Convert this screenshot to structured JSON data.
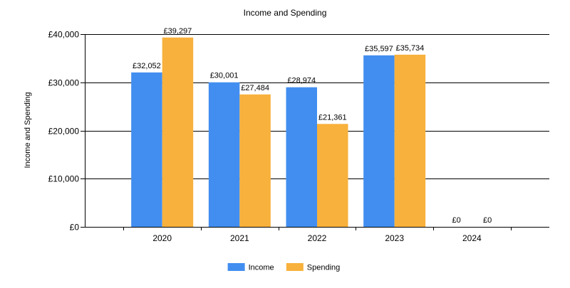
{
  "chart_data": {
    "type": "bar",
    "title": "Income and Spending",
    "xlabel": "",
    "ylabel": "Income and Spending",
    "categories": [
      "2020",
      "2021",
      "2022",
      "2023",
      "2024"
    ],
    "series": [
      {
        "name": "Income",
        "color": "#428ef0",
        "values": [
          32052,
          30001,
          28974,
          35597,
          0
        ],
        "labels": [
          "£32,052",
          "£30,001",
          "£28,974",
          "£35,597",
          "£0"
        ]
      },
      {
        "name": "Spending",
        "color": "#f8b13c",
        "values": [
          39297,
          27484,
          21361,
          35734,
          0
        ],
        "labels": [
          "£39,297",
          "£27,484",
          "£21,361",
          "£35,734",
          "£0"
        ]
      }
    ],
    "ylim": [
      0,
      40000
    ],
    "yticks": [
      {
        "value": 0,
        "label": "£0"
      },
      {
        "value": 10000,
        "label": "£10,000"
      },
      {
        "value": 20000,
        "label": "£20,000"
      },
      {
        "value": 30000,
        "label": "£30,000"
      },
      {
        "value": 40000,
        "label": "£40,000"
      }
    ],
    "grid": true,
    "legend_position": "bottom"
  }
}
